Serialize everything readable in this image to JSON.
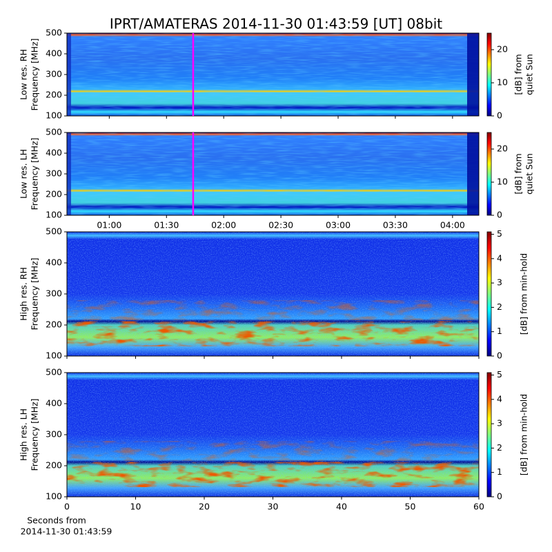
{
  "title": "IPRT/AMATERAS 2014-11-30 01:43:59 [UT]   08bit",
  "chart_data": [
    {
      "type": "heatmap",
      "ylabel": [
        "Low res. RH",
        "Frequency [MHz]"
      ],
      "ylim": [
        100,
        500
      ],
      "yticks": [
        100,
        200,
        300,
        400,
        500
      ],
      "colormap": "jet",
      "clim": [
        0,
        25
      ],
      "cticks": [
        0,
        10,
        20
      ],
      "clabel": [
        "[dB] from",
        "quiet Sun"
      ],
      "marker_x": 1.7331,
      "marker_color": "#ff00ff"
    },
    {
      "type": "heatmap",
      "ylabel": [
        "Low res. LH",
        "Frequency [MHz]"
      ],
      "ylim": [
        100,
        500
      ],
      "yticks": [
        100,
        200,
        300,
        400,
        500
      ],
      "xlim": [
        0.63,
        4.23
      ],
      "xticks": [
        {
          "value": 1,
          "label": "01:00"
        },
        {
          "value": 1.5,
          "label": "01:30"
        },
        {
          "value": 2,
          "label": "02:00"
        },
        {
          "value": 2.5,
          "label": "02:30"
        },
        {
          "value": 3,
          "label": "03:00"
        },
        {
          "value": 3.5,
          "label": "03:30"
        },
        {
          "value": 4,
          "label": "04:00"
        }
      ],
      "colormap": "jet",
      "clim": [
        0,
        25
      ],
      "cticks": [
        0,
        10,
        20
      ],
      "clabel": [
        "[dB] from",
        "quiet Sun"
      ],
      "marker_x": 1.7331,
      "marker_color": "#ff00ff"
    },
    {
      "type": "heatmap",
      "ylabel": [
        "High res. RH",
        "Frequency [MHz]"
      ],
      "ylim": [
        100,
        500
      ],
      "yticks": [
        100,
        200,
        300,
        400,
        500
      ],
      "colormap": "jet",
      "clim": [
        0,
        5.1
      ],
      "cticks": [
        0,
        1,
        2,
        3,
        4,
        5
      ],
      "clabel": [
        "[dB] from min-hold"
      ]
    },
    {
      "type": "heatmap",
      "ylabel": [
        "High res. LH",
        "Frequency [MHz]"
      ],
      "ylim": [
        100,
        500
      ],
      "yticks": [
        100,
        200,
        300,
        400,
        500
      ],
      "xlim": [
        0,
        60
      ],
      "xticks": [
        0,
        10,
        20,
        30,
        40,
        50,
        60
      ],
      "xlabel": [
        "Seconds from",
        "2014-11-30 01:43:59"
      ],
      "colormap": "jet",
      "clim": [
        0,
        5.1
      ],
      "cticks": [
        0,
        1,
        2,
        3,
        4,
        5
      ],
      "clabel": [
        "[dB] from min-hold"
      ]
    }
  ]
}
